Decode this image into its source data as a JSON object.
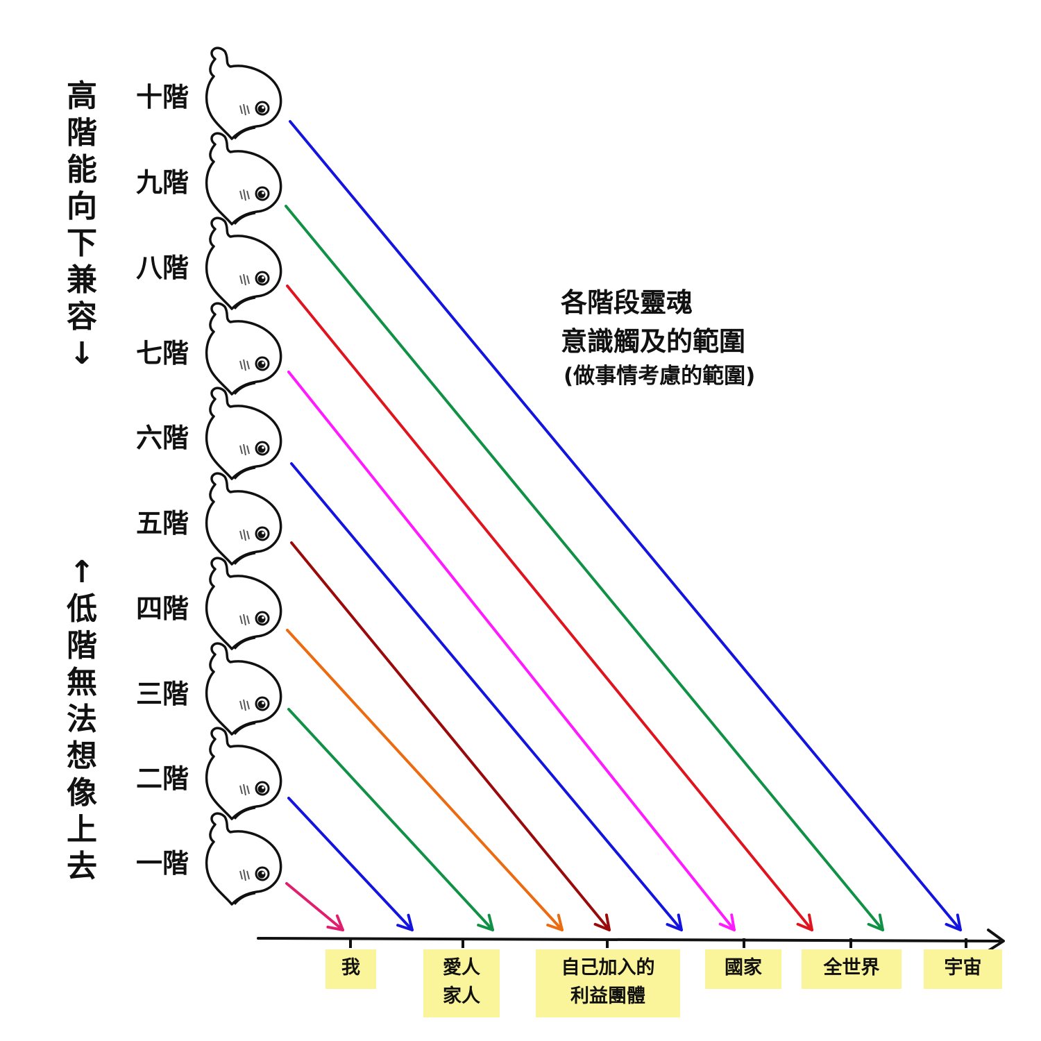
{
  "left_top_text": [
    "高",
    "階",
    "能",
    "向",
    "下",
    "兼",
    "容",
    "↓"
  ],
  "left_bottom_text": [
    "↑",
    "低",
    "階",
    "無",
    "法",
    "想",
    "像",
    "上",
    "去"
  ],
  "levels": [
    "十階",
    "九階",
    "八階",
    "七階",
    "六階",
    "五階",
    "四階",
    "三階",
    "二階",
    "一階"
  ],
  "title_lines": [
    "各階段靈魂",
    "意識觸及的範圍"
  ],
  "subtitle": "(做事情考慮的範圍)",
  "axis_labels": [
    [
      "我"
    ],
    [
      "愛人",
      "家人"
    ],
    [
      "自己加入的",
      "利益團體"
    ],
    [
      "國家"
    ],
    [
      "全世界"
    ],
    [
      "宇宙"
    ]
  ],
  "arrow_colors": {
    "十階": "#1414e0",
    "九階": "#119146",
    "八階": "#e0141e",
    "七階": "#ff1aff",
    "六階": "#1414e0",
    "五階": "#9a0a0a",
    "四階": "#ec6b10",
    "三階": "#119146",
    "二階": "#1414e0",
    "一階": "#e01e6e"
  },
  "label_box_color": "#faf59a"
}
